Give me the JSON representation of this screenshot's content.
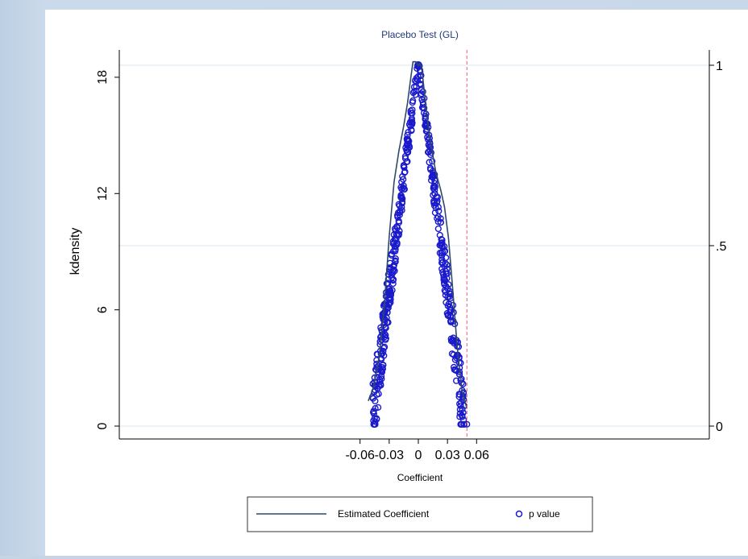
{
  "chart_data": {
    "type": "line",
    "title": "Placebo Test (GL)",
    "xlabel": "Coefficient",
    "ylabel": "kdensity",
    "xlim": [
      -0.06,
      0.06
    ],
    "ylim": [
      0,
      19.5
    ],
    "y2lim": [
      0,
      1.09
    ],
    "x_ticks": [
      -0.06,
      -0.03,
      0,
      0.03,
      0.06
    ],
    "x_tick_labels": [
      "-0.06",
      "-0.03",
      "0",
      "0.03",
      "0.06"
    ],
    "y_ticks": [
      0,
      6,
      12,
      18
    ],
    "y_tick_labels": [
      "0",
      "6",
      "12",
      "18"
    ],
    "y2_ticks": [
      0,
      0.5,
      1
    ],
    "y2_tick_labels": [
      "0",
      ".5",
      "1"
    ],
    "reference_lines": {
      "vertical_x": 0.05,
      "vertical_color": "#e06070",
      "horizontal_y2": [
        1.0,
        0.5,
        0.0
      ]
    },
    "series": [
      {
        "name": "Estimated Coefficient",
        "type": "line",
        "axis": "left",
        "color": "#2e4a6a",
        "points": [
          [
            -0.0515,
            1.3
          ],
          [
            -0.046,
            2.0
          ],
          [
            -0.04,
            3.7
          ],
          [
            -0.035,
            6.2
          ],
          [
            -0.03,
            9.8
          ],
          [
            -0.025,
            12.6
          ],
          [
            -0.02,
            14.2
          ],
          [
            -0.015,
            15.5
          ],
          [
            -0.011,
            16.7
          ],
          [
            -0.008,
            17.9
          ],
          [
            -0.0055,
            18.8
          ],
          [
            -0.0025,
            18.8
          ],
          [
            0.0,
            18.6
          ],
          [
            0.0015,
            18.7
          ],
          [
            0.0035,
            18.5
          ],
          [
            0.008,
            16.4
          ],
          [
            0.012,
            14.8
          ],
          [
            0.018,
            13.1
          ],
          [
            0.023,
            12.2
          ],
          [
            0.027,
            11.3
          ],
          [
            0.031,
            9.7
          ],
          [
            0.035,
            7.3
          ],
          [
            0.04,
            4.1
          ],
          [
            0.045,
            1.8
          ],
          [
            0.05,
            0.9
          ]
        ]
      },
      {
        "name": "p value",
        "type": "scatter",
        "axis": "right",
        "color": "#1a1acc",
        "generator": "symmetric cloud descending from 1 at x=0 to ~0 at |x|=0.05"
      }
    ],
    "legend": {
      "position": "bottom",
      "entries": [
        "Estimated Coefficient",
        "p value"
      ]
    }
  }
}
